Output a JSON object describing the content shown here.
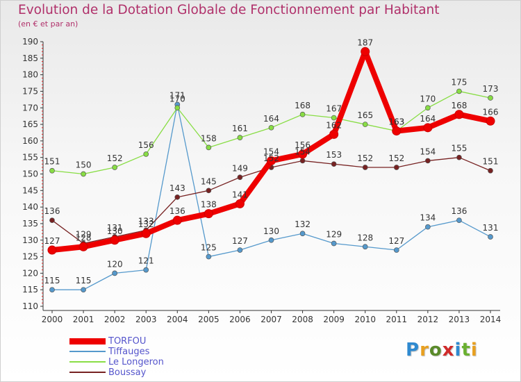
{
  "title": "Evolution de la Dotation Globale de Fonctionnement par Habitant",
  "subtitle": "(en € et par an)",
  "logo": {
    "text": [
      "P",
      "r",
      "o",
      "x",
      "i",
      "t",
      "i"
    ],
    "colors": [
      "#2f8ad0",
      "#e8a020",
      "#5a8a2a",
      "#d02a2a",
      "#2f8ad0",
      "#6ab030",
      "#e8a020"
    ]
  },
  "chart_data": {
    "type": "line",
    "title": "Evolution de la Dotation Globale de Fonctionnement par Habitant",
    "subtitle": "(en € et par an)",
    "xlabel": "",
    "ylabel": "",
    "x": [
      "2000",
      "2001",
      "2002",
      "2003",
      "2004",
      "2005",
      "2006",
      "2007",
      "2008",
      "2009",
      "2010",
      "2011",
      "2012",
      "2013",
      "2014"
    ],
    "ylim": [
      110,
      190
    ],
    "yticks": [
      "110",
      "115",
      "120",
      "125",
      "130",
      "135",
      "140",
      "145",
      "150",
      "155",
      "160",
      "165",
      "170",
      "175",
      "180",
      "185",
      "190"
    ],
    "grid": false,
    "legend": "bottom-left",
    "series": [
      {
        "name": "TORFOU",
        "color": "#ee0000",
        "emphasis": true,
        "values": [
          127,
          128,
          130,
          132,
          136,
          138,
          141,
          154,
          156,
          162,
          187,
          163,
          164,
          168,
          166
        ],
        "labels": [
          "127",
          "128",
          "130",
          "132",
          "136",
          "138",
          "141",
          "154",
          "156",
          "162",
          "187",
          "163",
          "164",
          "168",
          "166"
        ]
      },
      {
        "name": "Tiffauges",
        "color": "#5599cc",
        "values": [
          115,
          115,
          120,
          121,
          171,
          125,
          127,
          130,
          132,
          129,
          128,
          127,
          134,
          136,
          131
        ],
        "labels": [
          "115",
          "115",
          "120",
          "121",
          "171",
          "125",
          "127",
          "130",
          "132",
          "129",
          "128",
          "127",
          "134",
          "136",
          "131"
        ]
      },
      {
        "name": "Le Longeron",
        "color": "#88dd44",
        "values": [
          151,
          150,
          152,
          156,
          170,
          158,
          161,
          164,
          168,
          167,
          165,
          163,
          170,
          175,
          173
        ],
        "labels": [
          "151",
          "150",
          "152",
          "156",
          "170",
          "158",
          "161",
          "164",
          "168",
          "167",
          "165",
          "163",
          "170",
          "175",
          "173"
        ]
      },
      {
        "name": "Boussay",
        "color": "#772222",
        "values": [
          136,
          129,
          131,
          133,
          143,
          145,
          149,
          152,
          154,
          153,
          152,
          152,
          154,
          155,
          151
        ],
        "labels": [
          "136",
          "129",
          "131",
          "133",
          "143",
          "145",
          "149",
          "152",
          "154",
          "153",
          "152",
          "152",
          "154",
          "155",
          "151"
        ]
      }
    ]
  }
}
